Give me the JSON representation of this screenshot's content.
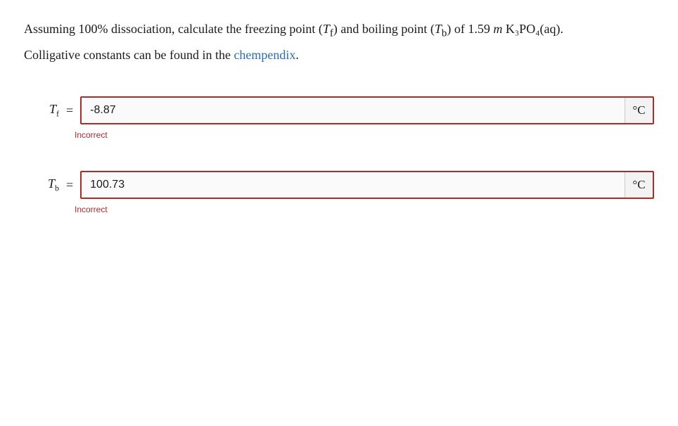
{
  "prompt": {
    "line1_prefix": "Assuming 100% dissociation, calculate the freezing point (",
    "sym_tf": "T",
    "sym_tf_sub": "f",
    "line1_mid1": ") and boiling point (",
    "sym_tb": "T",
    "sym_tb_sub": "b",
    "line1_mid2": ") of 1.59 ",
    "italic_m": "m",
    "formula_k3po4": " K₃PO₄(aq).",
    "line2_prefix": "Colligative constants can be found in the ",
    "link_text": "chempendix",
    "line2_suffix": "."
  },
  "q1": {
    "label_main": "T",
    "label_sub": "f",
    "equals": "=",
    "value": "-8.87",
    "unit": "°C",
    "feedback": "Incorrect"
  },
  "q2": {
    "label_main": "T",
    "label_sub": "b",
    "equals": "=",
    "value": "100.73",
    "unit": "°C",
    "feedback": "Incorrect"
  }
}
